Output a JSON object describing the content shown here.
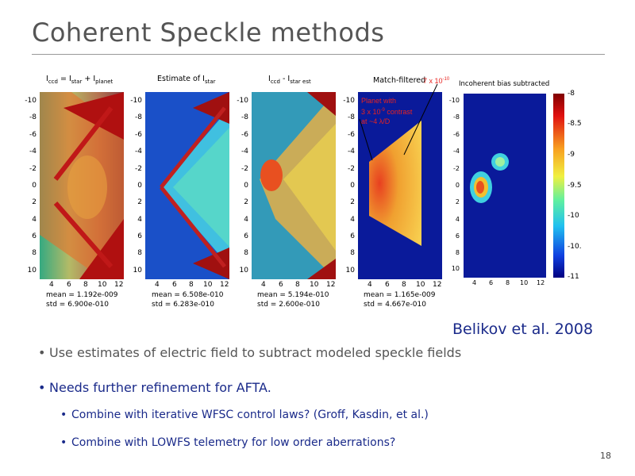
{
  "title": "Coherent Speckle methods",
  "panels": [
    {
      "title_main": "I",
      "title_sub1": "ccd",
      "title_mid": " = I",
      "title_sub2": "star",
      "title_mid2": " + I",
      "title_sub3": "planet",
      "mean": "mean = 1.192e-009",
      "std": "std = 6.900e-010"
    },
    {
      "title_main": "Estimate of I",
      "title_sub1": "star",
      "mean": "mean = 6.508e-010",
      "std": "std = 6.283e-010"
    },
    {
      "title_main": "I",
      "title_sub1": "ccd",
      "title_mid": " - I",
      "title_sub2": "star est",
      "mean": "mean = 5.194e-010",
      "std": "std = 2.600e-010"
    },
    {
      "title_main": "Match-filtered",
      "mean": "mean = 1.165e-009",
      "std": "std = 4.667e-010"
    },
    {
      "title_main": "Incoherent bias subtracted"
    }
  ],
  "yticks": [
    "-10",
    "-8",
    "-6",
    "-4",
    "-2",
    "0",
    "2",
    "4",
    "6",
    "8",
    "10"
  ],
  "xticks": [
    "4",
    "6",
    "8",
    "10",
    "12"
  ],
  "annotations": {
    "contrast_label_base": "7 x 10",
    "contrast_label_exp": "-10",
    "planet_line1": "Planet with",
    "planet_line2_base": "3 x 10",
    "planet_line2_exp": "-9",
    "planet_line2_rest": " contrast",
    "planet_line3": "at ~4 λ/D"
  },
  "colorbar": {
    "labels": [
      "-8",
      "-8.5",
      "-9",
      "-9.5",
      "-10",
      "-10.",
      "-11"
    ]
  },
  "citation": "Belikov et al. 2008",
  "bullets": {
    "b1": "Use estimates of electric field to subtract modeled speckle fields",
    "b2": "Needs further refinement for AFTA.",
    "sub1": "Combine with iterative WFSC control laws?  (Groff, Kasdin, et al.)",
    "sub2": "Combine with LOWFS telemetry for low order aberrations?"
  },
  "page_number": "18",
  "colors": {
    "title": "#555555",
    "accent": "#1a2a8a",
    "annotation": "#e8231f"
  }
}
